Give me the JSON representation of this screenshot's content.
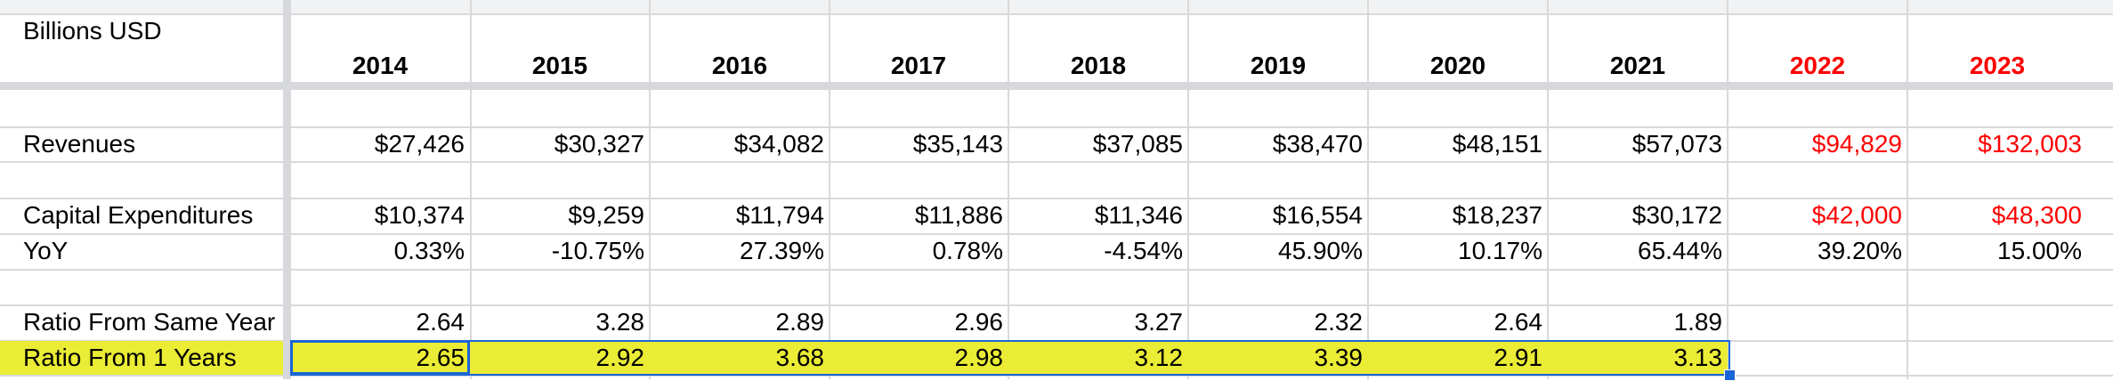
{
  "header_label": "Billions USD",
  "years": [
    "2014",
    "2015",
    "2016",
    "2017",
    "2018",
    "2019",
    "2020",
    "2021",
    "2022",
    "2023"
  ],
  "projected_year_color": "#ff0000",
  "highlight_color": "#eaec35",
  "selection_color": "#1a66d6",
  "rows": {
    "revenues": {
      "label": "Revenues",
      "values": [
        "$27,426",
        "$30,327",
        "$34,082",
        "$35,143",
        "$37,085",
        "$38,470",
        "$48,151",
        "$57,073",
        "$94,829",
        "$132,003"
      ]
    },
    "capex": {
      "label": "Capital Expenditures",
      "values": [
        "$10,374",
        "$9,259",
        "$11,794",
        "$11,886",
        "$11,346",
        "$16,554",
        "$18,237",
        "$30,172",
        "$42,000",
        "$48,300"
      ]
    },
    "yoy": {
      "label": "YoY",
      "values": [
        "0.33%",
        "-10.75%",
        "27.39%",
        "0.78%",
        "-4.54%",
        "45.90%",
        "10.17%",
        "65.44%",
        "39.20%",
        "15.00%"
      ]
    },
    "ratio_same": {
      "label": "Ratio From Same Year",
      "values": [
        "2.64",
        "3.28",
        "2.89",
        "2.96",
        "3.27",
        "2.32",
        "2.64",
        "1.89"
      ]
    },
    "ratio_1": {
      "label": "Ratio From 1 Years",
      "values": [
        "2.65",
        "2.92",
        "3.68",
        "2.98",
        "3.12",
        "3.39",
        "2.91",
        "3.13"
      ]
    }
  }
}
